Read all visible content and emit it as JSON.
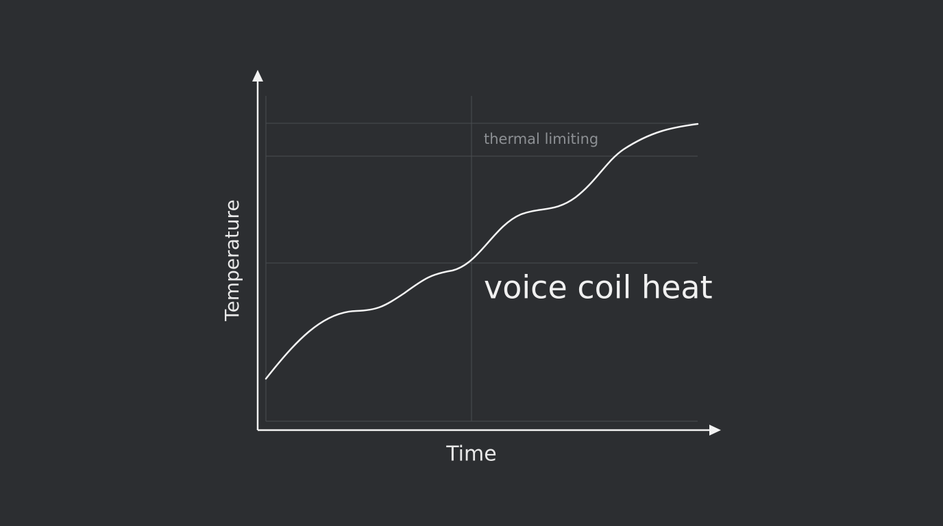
{
  "axes": {
    "y_label": "Temperature",
    "x_label": "Time"
  },
  "annotations": {
    "limit": "thermal limiting",
    "curve": "voice coil heat"
  }
}
